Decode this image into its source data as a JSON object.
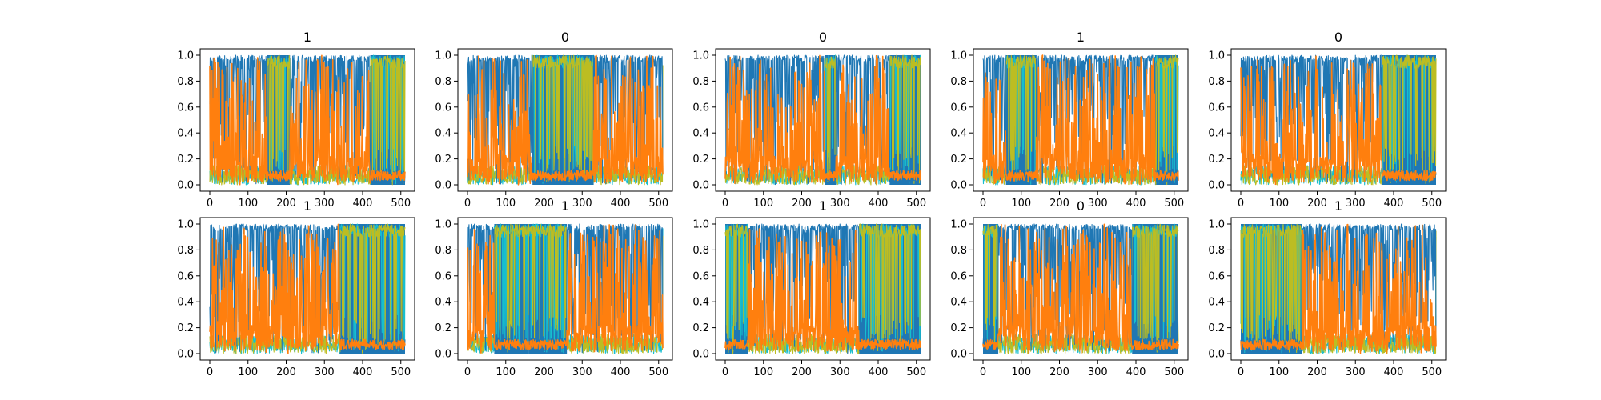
{
  "figure": {
    "rows": 2,
    "cols": 5
  },
  "chart_data": [
    {
      "type": "line",
      "title": "1",
      "xlim": [
        0,
        511
      ],
      "ylim": [
        0.0,
        1.0
      ],
      "xticks": [
        "0",
        "100",
        "200",
        "300",
        "400",
        "500"
      ],
      "yticks": [
        "0.0",
        "0.2",
        "0.4",
        "0.6",
        "0.8",
        "1.0"
      ],
      "series_colors": [
        "#1f77b4",
        "#17becf",
        "#bcbd22",
        "#ff7f0e"
      ],
      "regimes": [
        [
          0,
          150,
          "orange"
        ],
        [
          150,
          210,
          "blue"
        ],
        [
          210,
          330,
          "orange"
        ],
        [
          330,
          420,
          "orange"
        ],
        [
          420,
          511,
          "blue"
        ]
      ]
    },
    {
      "type": "line",
      "title": "0",
      "xlim": [
        0,
        511
      ],
      "ylim": [
        0.0,
        1.0
      ],
      "xticks": [
        "0",
        "100",
        "200",
        "300",
        "400",
        "500"
      ],
      "yticks": [
        "0.0",
        "0.2",
        "0.4",
        "0.6",
        "0.8",
        "1.0"
      ],
      "series_colors": [
        "#1f77b4",
        "#17becf",
        "#bcbd22",
        "#ff7f0e"
      ],
      "regimes": [
        [
          0,
          170,
          "orange"
        ],
        [
          170,
          330,
          "blue"
        ],
        [
          330,
          511,
          "orange"
        ]
      ]
    },
    {
      "type": "line",
      "title": "0",
      "xlim": [
        0,
        511
      ],
      "ylim": [
        0.0,
        1.0
      ],
      "xticks": [
        "0",
        "100",
        "200",
        "300",
        "400",
        "500"
      ],
      "yticks": [
        "0.0",
        "0.2",
        "0.4",
        "0.6",
        "0.8",
        "1.0"
      ],
      "series_colors": [
        "#1f77b4",
        "#17becf",
        "#bcbd22",
        "#ff7f0e"
      ],
      "regimes": [
        [
          0,
          260,
          "orange"
        ],
        [
          260,
          290,
          "blue"
        ],
        [
          290,
          430,
          "orange"
        ],
        [
          430,
          511,
          "blue"
        ]
      ]
    },
    {
      "type": "line",
      "title": "1",
      "xlim": [
        0,
        511
      ],
      "ylim": [
        0.0,
        1.0
      ],
      "xticks": [
        "0",
        "100",
        "200",
        "300",
        "400",
        "500"
      ],
      "yticks": [
        "0.0",
        "0.2",
        "0.4",
        "0.6",
        "0.8",
        "1.0"
      ],
      "series_colors": [
        "#1f77b4",
        "#17becf",
        "#bcbd22",
        "#ff7f0e"
      ],
      "regimes": [
        [
          0,
          60,
          "orange"
        ],
        [
          60,
          140,
          "blue"
        ],
        [
          140,
          450,
          "orange"
        ],
        [
          450,
          511,
          "blue"
        ]
      ]
    },
    {
      "type": "line",
      "title": "0",
      "xlim": [
        0,
        511
      ],
      "ylim": [
        0.0,
        1.0
      ],
      "xticks": [
        "0",
        "100",
        "200",
        "300",
        "400",
        "500"
      ],
      "yticks": [
        "0.0",
        "0.2",
        "0.4",
        "0.6",
        "0.8",
        "1.0"
      ],
      "series_colors": [
        "#1f77b4",
        "#17becf",
        "#bcbd22",
        "#ff7f0e"
      ],
      "regimes": [
        [
          0,
          370,
          "orange"
        ],
        [
          370,
          511,
          "blue"
        ]
      ]
    },
    {
      "type": "line",
      "title": "1",
      "xlim": [
        0,
        511
      ],
      "ylim": [
        0.0,
        1.0
      ],
      "xticks": [
        "0",
        "100",
        "200",
        "300",
        "400",
        "500"
      ],
      "yticks": [
        "0.0",
        "0.2",
        "0.4",
        "0.6",
        "0.8",
        "1.0"
      ],
      "series_colors": [
        "#1f77b4",
        "#17becf",
        "#bcbd22",
        "#ff7f0e"
      ],
      "regimes": [
        [
          0,
          340,
          "orange"
        ],
        [
          340,
          511,
          "blue"
        ]
      ]
    },
    {
      "type": "line",
      "title": "1",
      "xlim": [
        0,
        511
      ],
      "ylim": [
        0.0,
        1.0
      ],
      "xticks": [
        "0",
        "100",
        "200",
        "300",
        "400",
        "500"
      ],
      "yticks": [
        "0.0",
        "0.2",
        "0.4",
        "0.6",
        "0.8",
        "1.0"
      ],
      "series_colors": [
        "#1f77b4",
        "#17becf",
        "#bcbd22",
        "#ff7f0e"
      ],
      "regimes": [
        [
          0,
          70,
          "orange"
        ],
        [
          70,
          160,
          "blue"
        ],
        [
          160,
          260,
          "blue"
        ],
        [
          260,
          450,
          "orange"
        ],
        [
          450,
          511,
          "orange"
        ]
      ]
    },
    {
      "type": "line",
      "title": "1",
      "xlim": [
        0,
        511
      ],
      "ylim": [
        0.0,
        1.0
      ],
      "xticks": [
        "0",
        "100",
        "200",
        "300",
        "400",
        "500"
      ],
      "yticks": [
        "0.0",
        "0.2",
        "0.4",
        "0.6",
        "0.8",
        "1.0"
      ],
      "series_colors": [
        "#1f77b4",
        "#17becf",
        "#bcbd22",
        "#ff7f0e"
      ],
      "regimes": [
        [
          0,
          60,
          "blue"
        ],
        [
          60,
          310,
          "orange"
        ],
        [
          310,
          350,
          "orange"
        ],
        [
          350,
          511,
          "blue"
        ]
      ]
    },
    {
      "type": "line",
      "title": "0",
      "xlim": [
        0,
        511
      ],
      "ylim": [
        0.0,
        1.0
      ],
      "xticks": [
        "0",
        "100",
        "200",
        "300",
        "400",
        "500"
      ],
      "yticks": [
        "0.0",
        "0.2",
        "0.4",
        "0.6",
        "0.8",
        "1.0"
      ],
      "series_colors": [
        "#1f77b4",
        "#17becf",
        "#bcbd22",
        "#ff7f0e"
      ],
      "regimes": [
        [
          0,
          40,
          "blue"
        ],
        [
          40,
          390,
          "orange"
        ],
        [
          390,
          511,
          "blue"
        ]
      ]
    },
    {
      "type": "line",
      "title": "1",
      "xlim": [
        0,
        511
      ],
      "ylim": [
        0.0,
        1.0
      ],
      "xticks": [
        "0",
        "100",
        "200",
        "300",
        "400",
        "500"
      ],
      "yticks": [
        "0.0",
        "0.2",
        "0.4",
        "0.6",
        "0.8",
        "1.0"
      ],
      "series_colors": [
        "#1f77b4",
        "#17becf",
        "#bcbd22",
        "#ff7f0e"
      ],
      "regimes": [
        [
          0,
          160,
          "blue"
        ],
        [
          160,
          511,
          "orange"
        ]
      ]
    }
  ]
}
